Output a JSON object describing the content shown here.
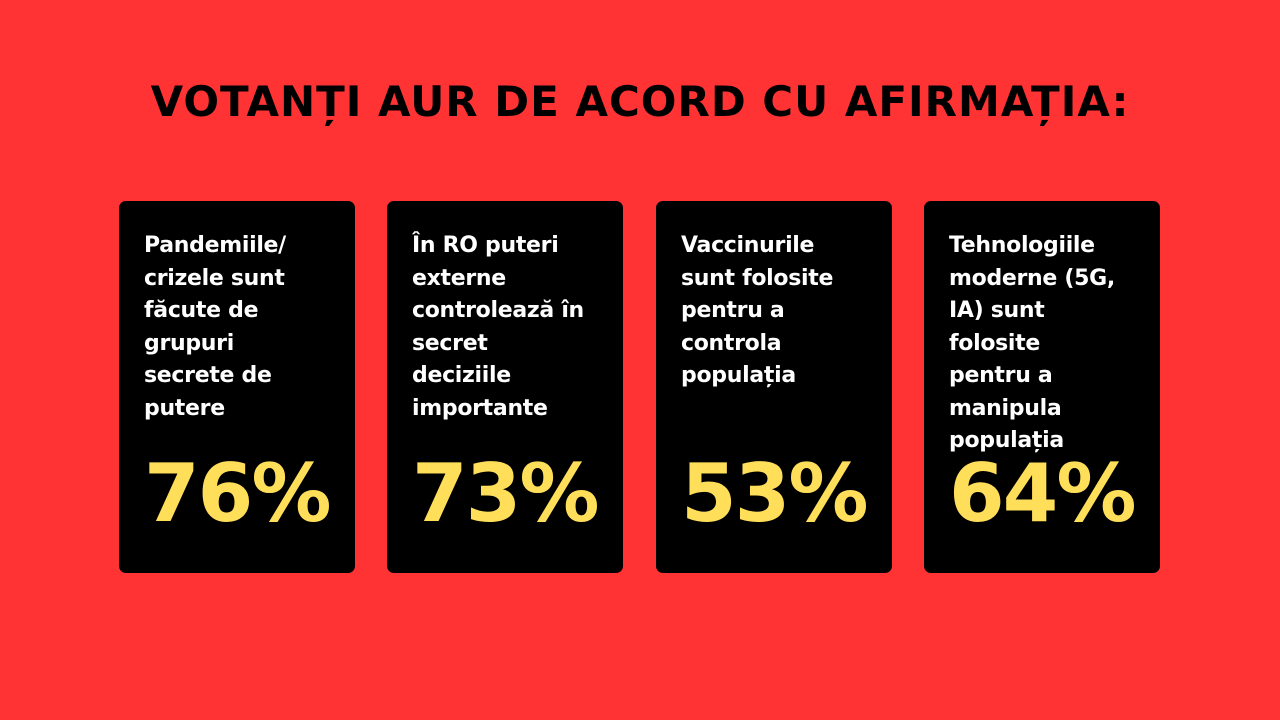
{
  "colors": {
    "background": "#ff3333",
    "card": "#000000",
    "statement_text": "#ffffff",
    "percent_text": "#ffde59",
    "headline_text": "#000000"
  },
  "headline": "VOTANȚI AUR DE ACORD CU AFIRMAȚIA:",
  "cards": [
    {
      "statement": "Pandemiile/\ncrizele sunt\nfăcute de\ngrupuri\nsecrete de\nputere",
      "percent": "76%"
    },
    {
      "statement": "În RO puteri\nexterne\ncontrolează în\nsecret\ndeciziile\nimportante",
      "percent": "73%"
    },
    {
      "statement": "Vaccinurile\nsunt folosite\npentru a\ncontrola\npopulația",
      "percent": "53%"
    },
    {
      "statement": "Tehnologiile\nmoderne (5G,\nIA) sunt folosite\npentru a\nmanipula\npopulația",
      "percent": "64%"
    }
  ]
}
